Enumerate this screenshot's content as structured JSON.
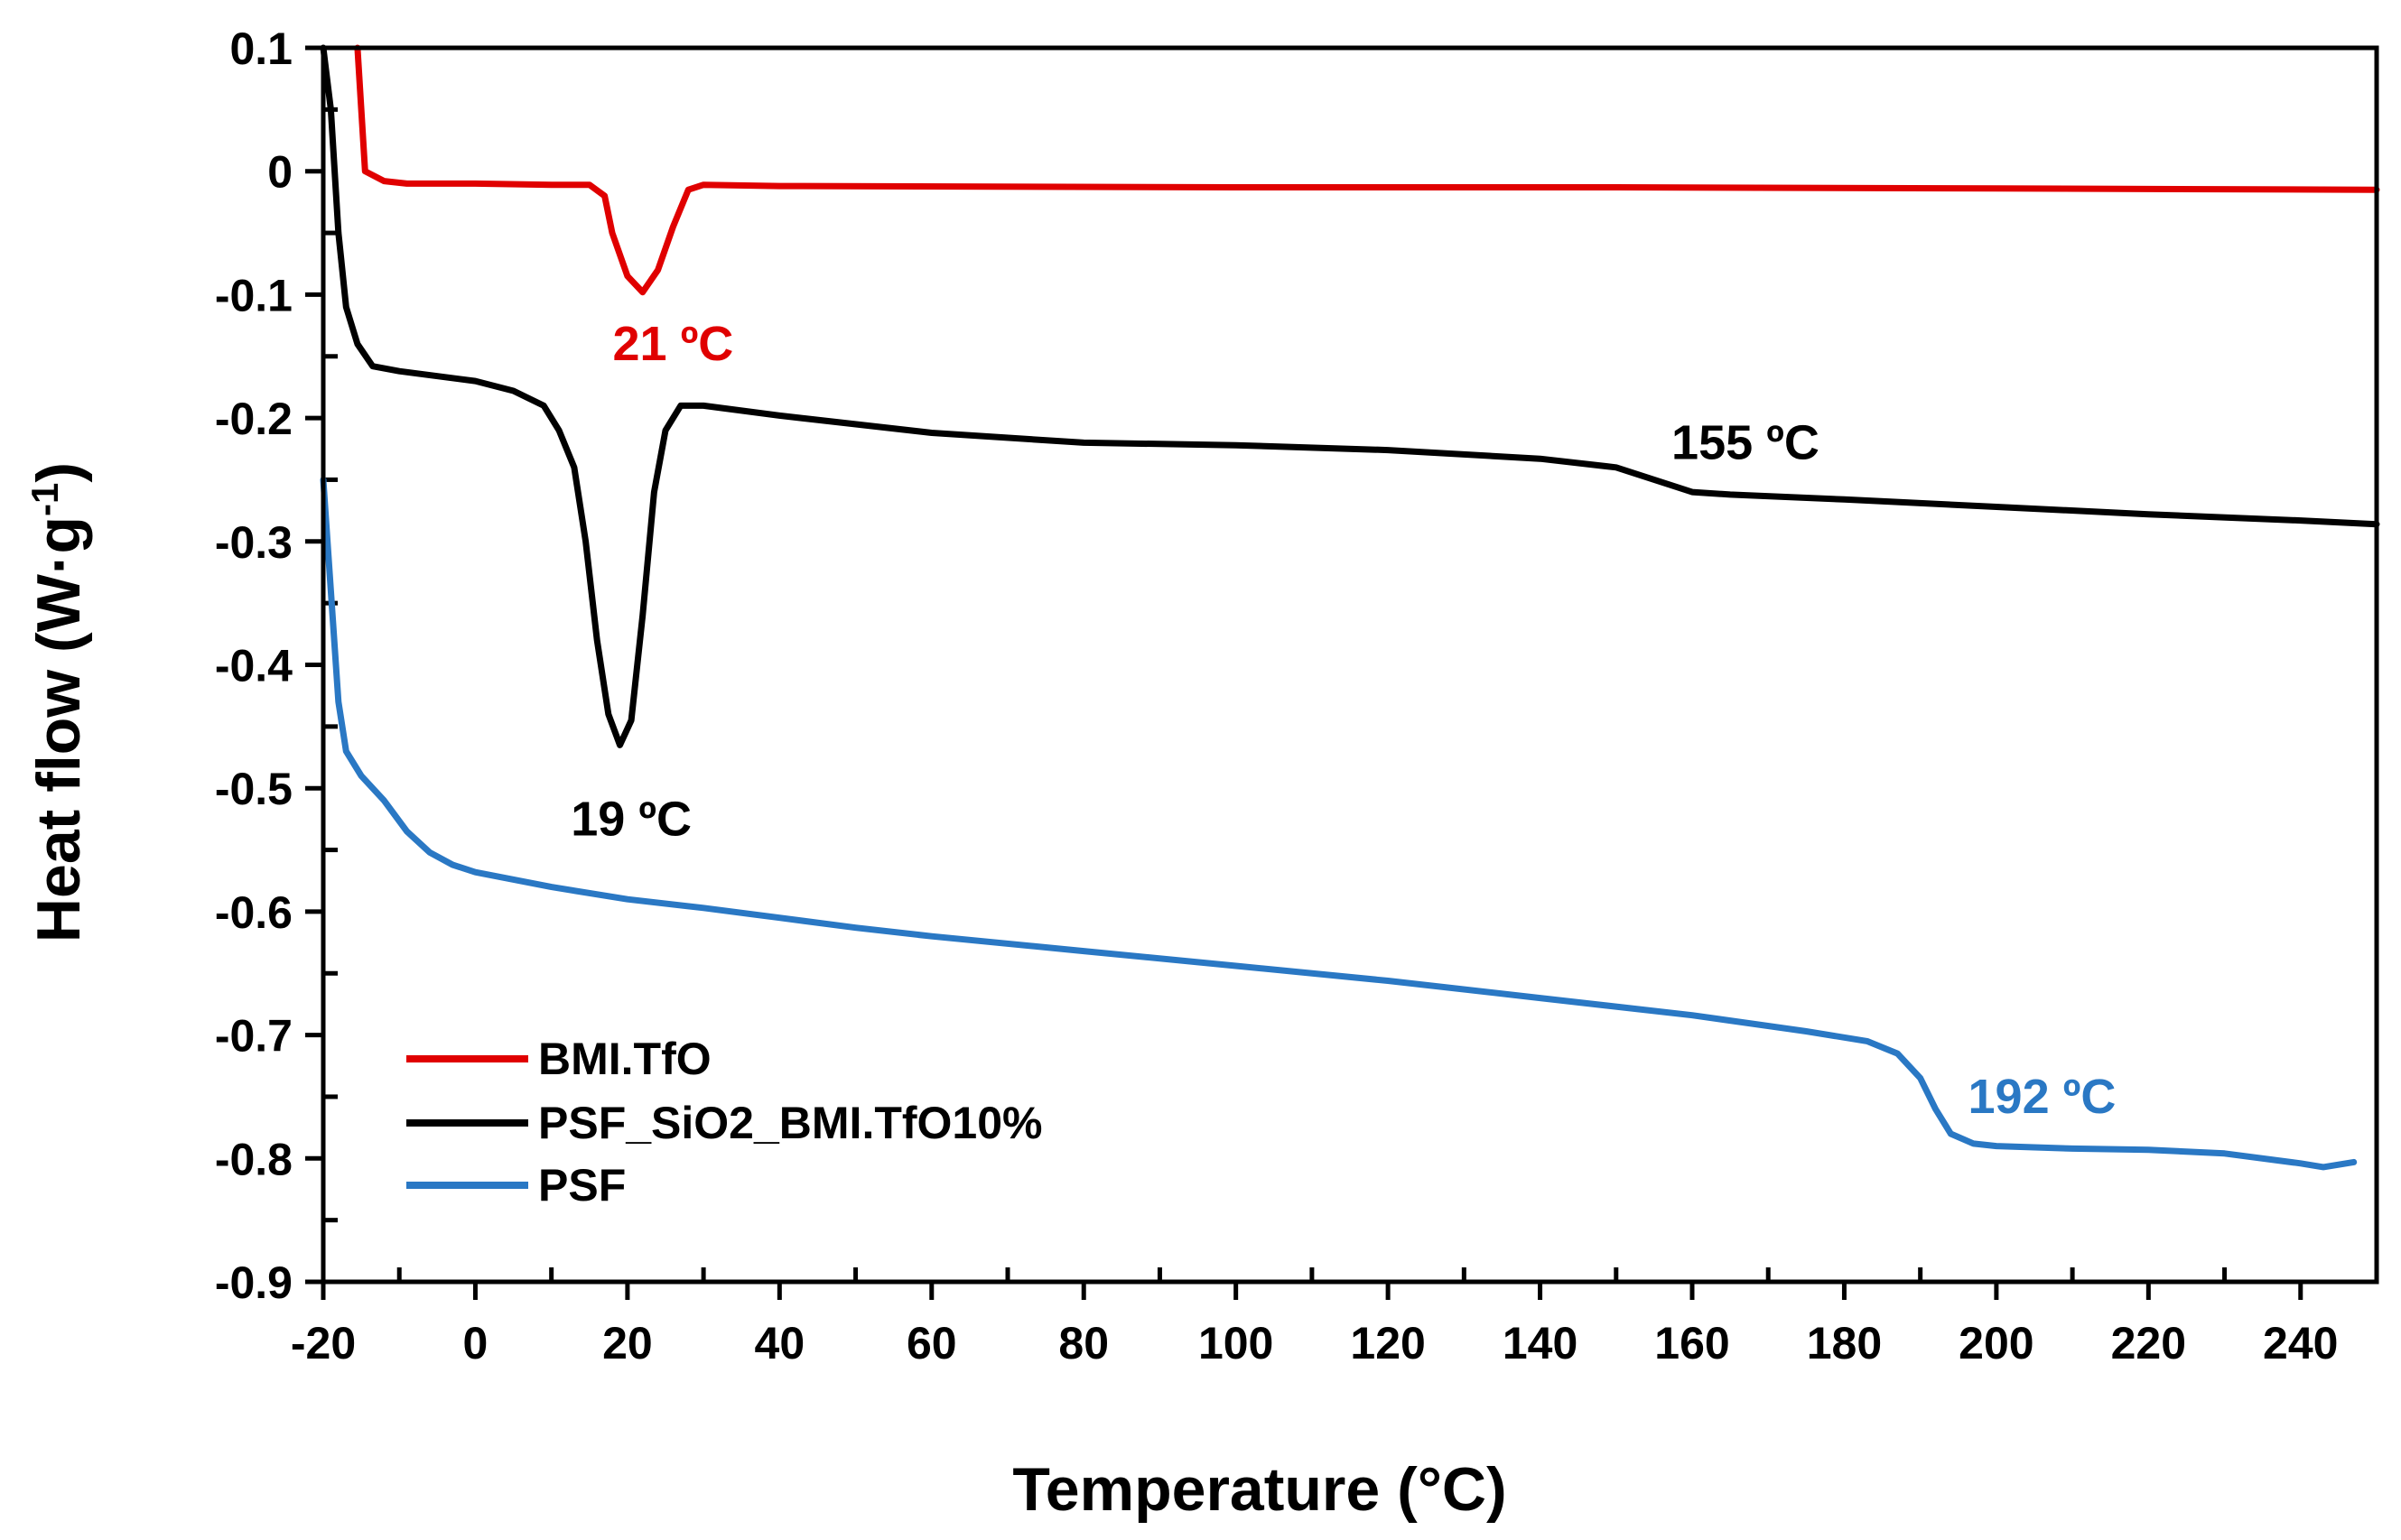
{
  "chart_data": {
    "type": "line",
    "title": "",
    "xlabel": "Temperature (°C)",
    "ylabel_main": "Heat flow (W·g",
    "ylabel_sup": "-1",
    "ylabel_close": ")",
    "xlim": [
      -20,
      250
    ],
    "ylim": [
      -0.9,
      0.1
    ],
    "grid": false,
    "legend_position": "bottom-left",
    "xticks": [
      -20,
      0,
      20,
      40,
      60,
      80,
      100,
      120,
      140,
      160,
      180,
      200,
      220,
      240
    ],
    "xtick_labels": [
      "-20",
      "0",
      "20",
      "40",
      "60",
      "80",
      "100",
      "120",
      "140",
      "160",
      "180",
      "200",
      "220",
      "240"
    ],
    "yticks": [
      0.1,
      0,
      -0.1,
      -0.2,
      -0.3,
      -0.4,
      -0.5,
      -0.6,
      -0.7,
      -0.8,
      -0.9
    ],
    "ytick_labels": [
      "0.1",
      "0",
      "-0.1",
      "-0.2",
      "-0.3",
      "-0.4",
      "-0.5",
      "-0.6",
      "-0.7",
      "-0.8",
      "-0.9"
    ],
    "series": [
      {
        "name": "BMI.TfO",
        "color": "#e00000",
        "points": [
          [
            -15.5,
            0.1
          ],
          [
            -15,
            0.05
          ],
          [
            -14.5,
            0.0
          ],
          [
            -12,
            -0.008
          ],
          [
            -9,
            -0.01
          ],
          [
            0,
            -0.01
          ],
          [
            10,
            -0.011
          ],
          [
            15,
            -0.011
          ],
          [
            17,
            -0.02
          ],
          [
            18,
            -0.05
          ],
          [
            20,
            -0.085
          ],
          [
            22,
            -0.098
          ],
          [
            24,
            -0.08
          ],
          [
            26,
            -0.045
          ],
          [
            28,
            -0.015
          ],
          [
            30,
            -0.011
          ],
          [
            40,
            -0.012
          ],
          [
            100,
            -0.013
          ],
          [
            150,
            -0.013
          ],
          [
            200,
            -0.014
          ],
          [
            250,
            -0.015
          ]
        ]
      },
      {
        "name": "PSF_SiO2_BMI.TfO10%",
        "color": "#000000",
        "points": [
          [
            -20,
            0.1
          ],
          [
            -19,
            0.05
          ],
          [
            -18,
            -0.05
          ],
          [
            -17,
            -0.11
          ],
          [
            -15.5,
            -0.14
          ],
          [
            -13.5,
            -0.158
          ],
          [
            -10,
            -0.162
          ],
          [
            0,
            -0.17
          ],
          [
            5,
            -0.178
          ],
          [
            9,
            -0.19
          ],
          [
            11,
            -0.21
          ],
          [
            13,
            -0.24
          ],
          [
            14.5,
            -0.3
          ],
          [
            16,
            -0.38
          ],
          [
            17.5,
            -0.44
          ],
          [
            19,
            -0.465
          ],
          [
            20.5,
            -0.445
          ],
          [
            22,
            -0.36
          ],
          [
            23.5,
            -0.26
          ],
          [
            25,
            -0.21
          ],
          [
            27,
            -0.19
          ],
          [
            30,
            -0.19
          ],
          [
            40,
            -0.198
          ],
          [
            60,
            -0.212
          ],
          [
            80,
            -0.22
          ],
          [
            100,
            -0.222
          ],
          [
            120,
            -0.226
          ],
          [
            140,
            -0.233
          ],
          [
            150,
            -0.24
          ],
          [
            155,
            -0.25
          ],
          [
            160,
            -0.26
          ],
          [
            165,
            -0.262
          ],
          [
            180,
            -0.266
          ],
          [
            200,
            -0.272
          ],
          [
            220,
            -0.278
          ],
          [
            240,
            -0.283
          ],
          [
            250,
            -0.286
          ]
        ]
      },
      {
        "name": "PSF",
        "color": "#2a78c4",
        "points": [
          [
            -20,
            -0.25
          ],
          [
            -19,
            -0.34
          ],
          [
            -18,
            -0.43
          ],
          [
            -17,
            -0.47
          ],
          [
            -15,
            -0.49
          ],
          [
            -12,
            -0.51
          ],
          [
            -9,
            -0.535
          ],
          [
            -6,
            -0.552
          ],
          [
            -3,
            -0.562
          ],
          [
            0,
            -0.568
          ],
          [
            10,
            -0.58
          ],
          [
            20,
            -0.59
          ],
          [
            30,
            -0.597
          ],
          [
            40,
            -0.605
          ],
          [
            50,
            -0.613
          ],
          [
            60,
            -0.62
          ],
          [
            80,
            -0.632
          ],
          [
            100,
            -0.644
          ],
          [
            120,
            -0.656
          ],
          [
            140,
            -0.67
          ],
          [
            160,
            -0.684
          ],
          [
            175,
            -0.697
          ],
          [
            183,
            -0.705
          ],
          [
            187,
            -0.715
          ],
          [
            190,
            -0.735
          ],
          [
            192,
            -0.76
          ],
          [
            194,
            -0.78
          ],
          [
            197,
            -0.788
          ],
          [
            200,
            -0.79
          ],
          [
            210,
            -0.792
          ],
          [
            220,
            -0.793
          ],
          [
            230,
            -0.796
          ],
          [
            240,
            -0.804
          ],
          [
            243,
            -0.807
          ],
          [
            247,
            -0.803
          ]
        ]
      }
    ],
    "annotations": [
      {
        "text": "21 ºC",
        "x": 26,
        "y": -0.14,
        "color": "#e00000"
      },
      {
        "text": "19 ºC",
        "x": 20.5,
        "y": -0.525,
        "color": "#000000"
      },
      {
        "text": "155 ºC",
        "x": 167,
        "y": -0.22,
        "color": "#000000"
      },
      {
        "text": "192 ºC",
        "x": 206,
        "y": -0.75,
        "color": "#2a78c4"
      }
    ]
  }
}
